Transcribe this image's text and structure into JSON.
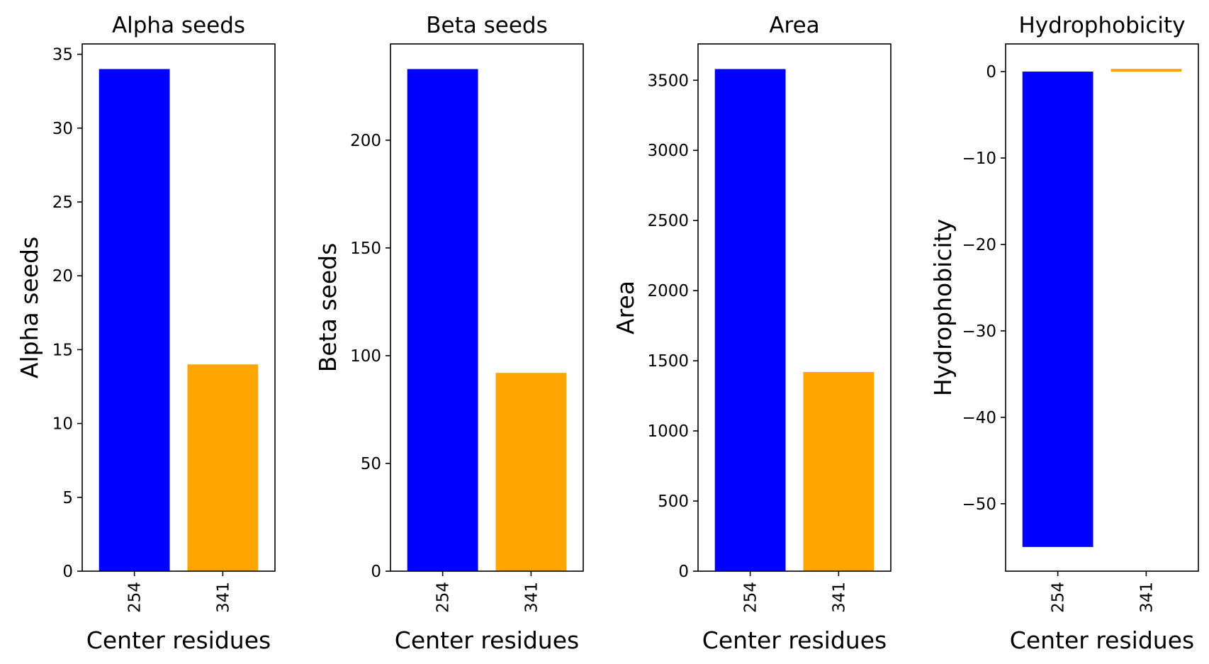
{
  "chart_data": [
    {
      "type": "bar",
      "title": "Alpha seeds",
      "xlabel": "Center residues",
      "ylabel": "Alpha seeds",
      "categories": [
        "254",
        "341"
      ],
      "values": [
        34,
        14
      ],
      "colors": [
        "#0000ff",
        "#ffa500"
      ],
      "ylim": [
        0,
        35.7
      ],
      "yticks": [
        0,
        5,
        10,
        15,
        20,
        25,
        30,
        35
      ]
    },
    {
      "type": "bar",
      "title": "Beta seeds",
      "xlabel": "Center residues",
      "ylabel": "Beta seeds",
      "categories": [
        "254",
        "341"
      ],
      "values": [
        233,
        92
      ],
      "colors": [
        "#0000ff",
        "#ffa500"
      ],
      "ylim": [
        0,
        244.65
      ],
      "yticks": [
        0,
        50,
        100,
        150,
        200
      ]
    },
    {
      "type": "bar",
      "title": "Area",
      "xlabel": "Center residues",
      "ylabel": "Area",
      "categories": [
        "254",
        "341"
      ],
      "values": [
        3580,
        1420
      ],
      "colors": [
        "#0000ff",
        "#ffa500"
      ],
      "ylim": [
        0,
        3759
      ],
      "yticks": [
        0,
        500,
        1000,
        1500,
        2000,
        2500,
        3000,
        3500
      ]
    },
    {
      "type": "bar",
      "title": "Hydrophobicity",
      "xlabel": "Center residues",
      "ylabel": "Hydrophobicity",
      "categories": [
        "254",
        "341"
      ],
      "values": [
        -55,
        0.3
      ],
      "colors": [
        "#0000ff",
        "#ffa500"
      ],
      "ylim": [
        -57.8,
        3.2
      ],
      "yticks": [
        0,
        -10,
        -20,
        -30,
        -40,
        -50
      ]
    }
  ]
}
